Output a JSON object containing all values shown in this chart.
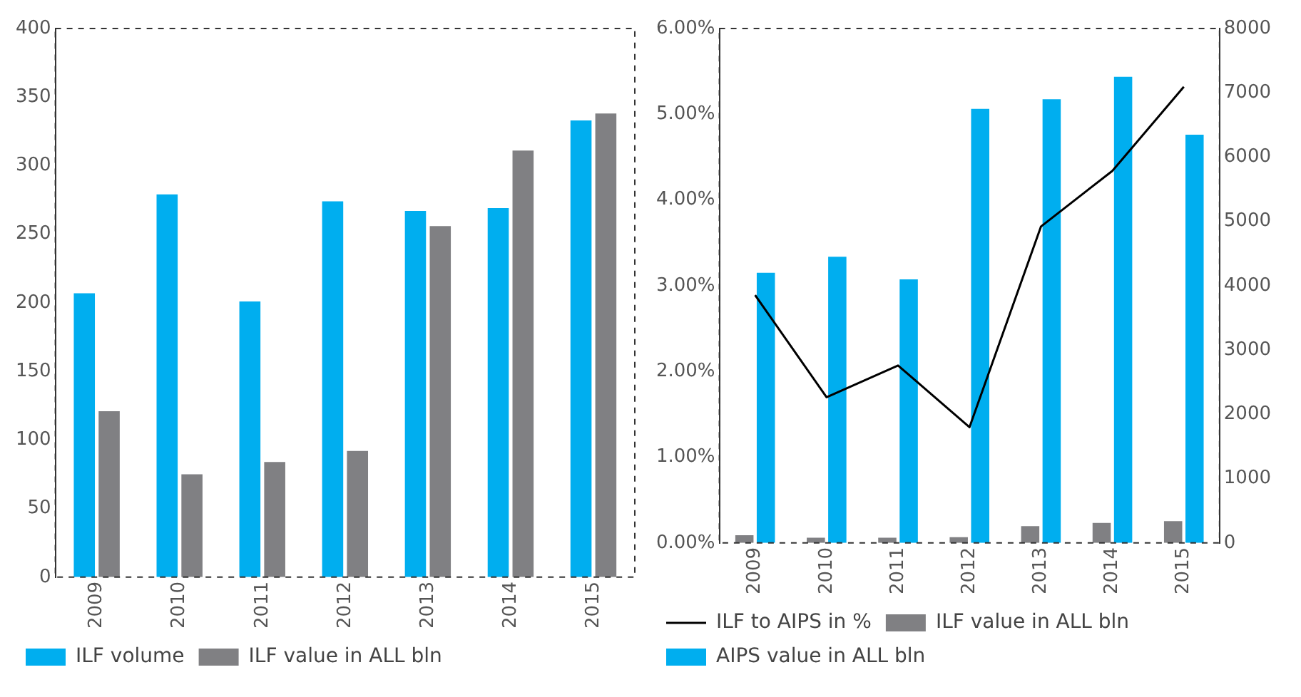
{
  "chart_data": [
    {
      "type": "bar",
      "categories": [
        "2009",
        "2010",
        "2011",
        "2012",
        "2013",
        "2014",
        "2015"
      ],
      "series": [
        {
          "name": "ILF volume",
          "color": "#00aeef",
          "values": [
            207,
            279,
            201,
            274,
            267,
            269,
            333
          ]
        },
        {
          "name": "ILF value in ALL bln",
          "color": "#808083",
          "values": [
            121,
            75,
            84,
            92,
            256,
            311,
            338
          ]
        }
      ],
      "ylim": [
        0,
        400
      ],
      "yticks": [
        0,
        50,
        100,
        150,
        200,
        250,
        300,
        350,
        400
      ],
      "grid": false,
      "legend": "bottom"
    },
    {
      "type": "bar",
      "categories": [
        "2009",
        "2010",
        "2011",
        "2012",
        "2013",
        "2014",
        "2015"
      ],
      "series": [
        {
          "name": "ILF value in ALL bln",
          "color": "#808083",
          "axis": "y2",
          "values": [
            120,
            80,
            80,
            90,
            260,
            310,
            340
          ]
        },
        {
          "name": "AIPS value in ALL bln",
          "color": "#00aeef",
          "axis": "y2",
          "values": [
            4200,
            4450,
            4100,
            6750,
            6900,
            7250,
            6350
          ]
        },
        {
          "name": "ILF to AIPS in %",
          "color": "#000000",
          "type": "line",
          "axis": "y",
          "values": [
            2.89,
            1.7,
            2.07,
            1.35,
            3.69,
            4.34,
            5.32
          ]
        }
      ],
      "ylim": [
        0,
        6
      ],
      "yticks": [
        {
          "value": 0,
          "label": "0.00%"
        },
        {
          "value": 1,
          "label": "1.00%"
        },
        {
          "value": 2,
          "label": "2.00%"
        },
        {
          "value": 3,
          "label": "3.00%"
        },
        {
          "value": 4,
          "label": "4.00%"
        },
        {
          "value": 5,
          "label": "5.00%"
        },
        {
          "value": 6,
          "label": "6.00%"
        }
      ],
      "y2lim": [
        0,
        8000
      ],
      "y2ticks": [
        0,
        1000,
        2000,
        3000,
        4000,
        5000,
        6000,
        7000,
        8000
      ],
      "grid": false,
      "legend": "bottom"
    }
  ]
}
